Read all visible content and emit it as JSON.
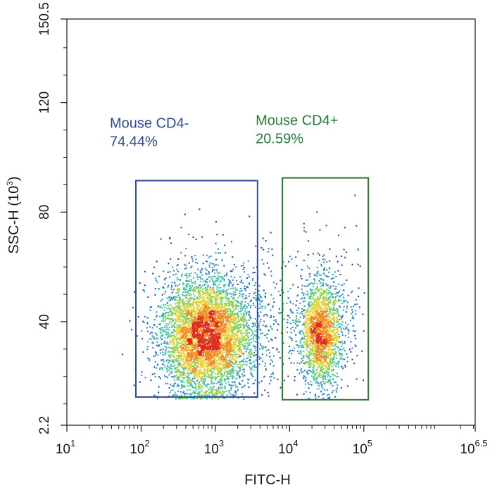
{
  "chart_data": {
    "type": "scatter",
    "subtype": "flow-cytometry density dot plot",
    "xlabel": "FITC-H",
    "ylabel": "SSC-H (10",
    "ylabel_superscript": "3",
    "ylabel_suffix": ")",
    "x_scale": "log",
    "xlim": [
      10,
      3162277.66
    ],
    "ylim": [
      2.2,
      150.5
    ],
    "x_ticks": [
      {
        "value": 10,
        "base": "10",
        "exp": "1"
      },
      {
        "value": 100,
        "base": "10",
        "exp": "2"
      },
      {
        "value": 1000,
        "base": "10",
        "exp": "3"
      },
      {
        "value": 10000,
        "base": "10",
        "exp": "4"
      },
      {
        "value": 100000,
        "base": "10",
        "exp": "5"
      },
      {
        "value": 3162277.66,
        "base": "10",
        "exp": "6.5"
      }
    ],
    "y_ticks": [
      {
        "value": 2.2,
        "label": "2.2"
      },
      {
        "value": 40,
        "label": "40"
      },
      {
        "value": 80,
        "label": "80"
      },
      {
        "value": 120,
        "label": "120"
      },
      {
        "value": 150.5,
        "label": "150.5"
      }
    ],
    "grid": false,
    "populations": [
      {
        "name": "Mouse CD4-",
        "center_x": 750,
        "center_y": 35,
        "spread_log_x": 0.32,
        "spread_y": 11
      },
      {
        "name": "Mouse CD4+",
        "center_x": 26000,
        "center_y": 36,
        "spread_log_x": 0.14,
        "spread_y": 10
      }
    ],
    "density_colors": [
      "#1f3fa8",
      "#2a86c9",
      "#3fc1a0",
      "#8fd14f",
      "#e8d23a",
      "#f08a24",
      "#e02a1a"
    ],
    "gates": [
      {
        "name": "Mouse CD4-",
        "label": "Mouse CD4-",
        "percent": "74.44%",
        "color": "#2e4b9a",
        "x_range": [
          85,
          3700
        ],
        "y_range": [
          12.5,
          91.5
        ]
      },
      {
        "name": "Mouse CD4+",
        "label": "Mouse CD4+",
        "percent": "20.59%",
        "color": "#2a7a3a",
        "x_range": [
          8000,
          115000
        ],
        "y_range": [
          11.5,
          92.5
        ]
      }
    ]
  }
}
